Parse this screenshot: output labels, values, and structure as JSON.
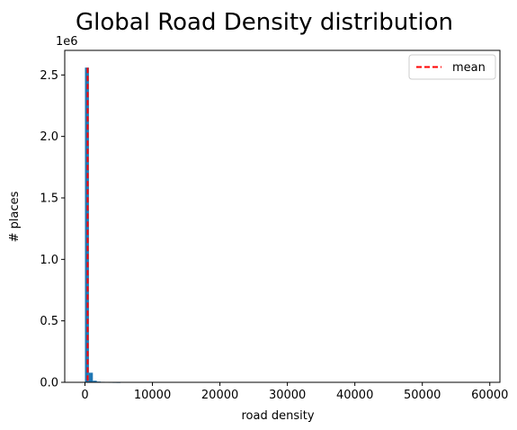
{
  "chart_data": {
    "type": "bar",
    "title": "Global Road Density distribution",
    "xlabel": "road density",
    "ylabel": "# places",
    "y_offset_label": "1e6",
    "xlim": [
      -3000,
      61500
    ],
    "ylim": [
      0,
      2.7
    ],
    "x_ticks": [
      0,
      10000,
      20000,
      30000,
      40000,
      50000,
      60000
    ],
    "x_tick_labels": [
      "0",
      "10000",
      "20000",
      "30000",
      "40000",
      "50000",
      "60000"
    ],
    "y_ticks": [
      0.0,
      0.5,
      1.0,
      1.5,
      2.0,
      2.5
    ],
    "y_tick_labels": [
      "0.0",
      "0.5",
      "1.0",
      "1.5",
      "2.0",
      "2.5"
    ],
    "bin_width": 585,
    "bins_start": 0,
    "series": [
      {
        "values": [
          2.56,
          0.078,
          0.013,
          0.006,
          0.004,
          0.003,
          0.002,
          0.0015,
          0.001
        ]
      }
    ],
    "mean_line": {
      "x": 400,
      "label": "mean",
      "color": "#ff0000"
    },
    "bar_color": "#1f77b4",
    "legend_position": "top-right",
    "grid": false
  }
}
